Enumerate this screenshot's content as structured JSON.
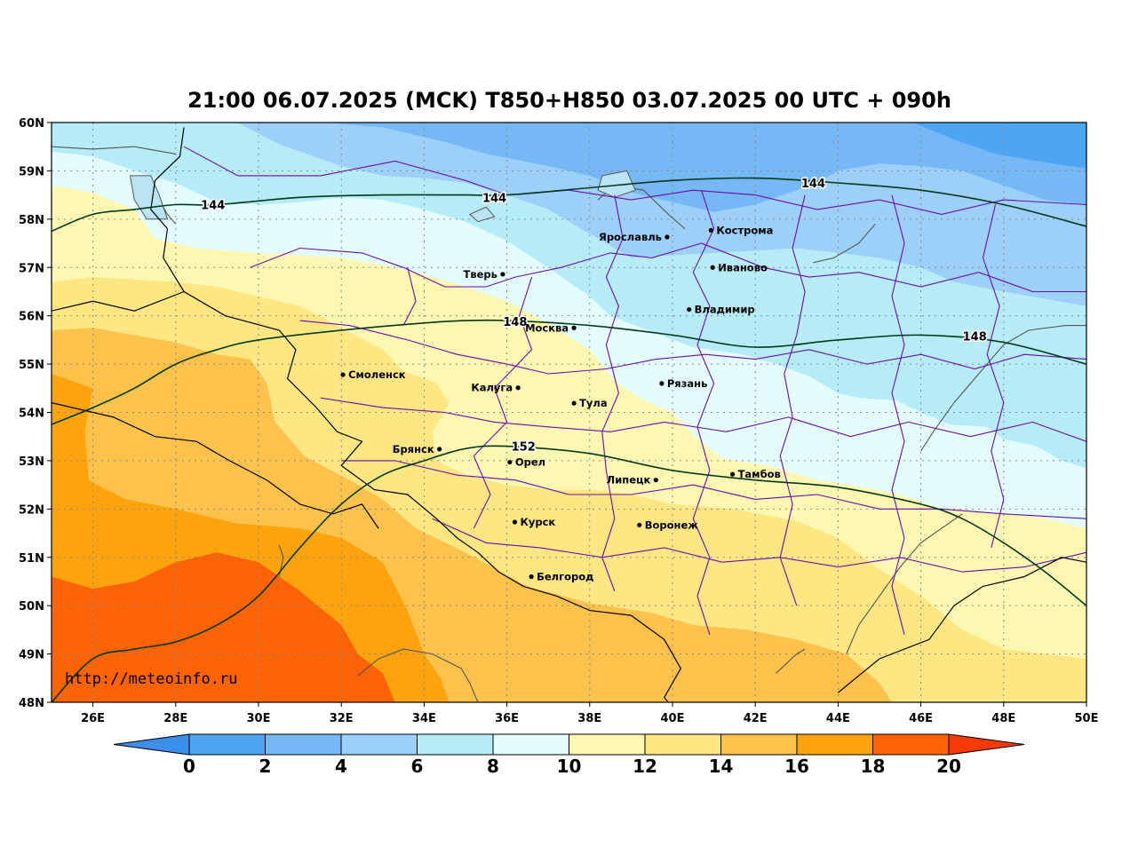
{
  "title": "21:00 06.07.2025 (MCK) T850+H850 03.07.2025 00 UTC + 090h",
  "source": "http://meteoinfo.ru",
  "map": {
    "lon_range": [
      25,
      50
    ],
    "lat_range": [
      48,
      60
    ],
    "x_ticks": [
      {
        "lon": 26,
        "label": "26E"
      },
      {
        "lon": 28,
        "label": "28E"
      },
      {
        "lon": 30,
        "label": "30E"
      },
      {
        "lon": 32,
        "label": "32E"
      },
      {
        "lon": 34,
        "label": "34E"
      },
      {
        "lon": 36,
        "label": "36E"
      },
      {
        "lon": 38,
        "label": "38E"
      },
      {
        "lon": 40,
        "label": "40E"
      },
      {
        "lon": 42,
        "label": "42E"
      },
      {
        "lon": 44,
        "label": "44E"
      },
      {
        "lon": 46,
        "label": "46E"
      },
      {
        "lon": 48,
        "label": "48E"
      },
      {
        "lon": 50,
        "label": "50E"
      }
    ],
    "y_ticks": [
      {
        "lat": 48,
        "label": "48N"
      },
      {
        "lat": 49,
        "label": "49N"
      },
      {
        "lat": 50,
        "label": "50N"
      },
      {
        "lat": 51,
        "label": "51N"
      },
      {
        "lat": 52,
        "label": "52N"
      },
      {
        "lat": 53,
        "label": "53N"
      },
      {
        "lat": 54,
        "label": "54N"
      },
      {
        "lat": 55,
        "label": "55N"
      },
      {
        "lat": 56,
        "label": "56N"
      },
      {
        "lat": 57,
        "label": "57N"
      },
      {
        "lat": 58,
        "label": "58N"
      },
      {
        "lat": 59,
        "label": "59N"
      },
      {
        "lat": 60,
        "label": "60N"
      }
    ],
    "grid": true
  },
  "colors": {
    "t0_2": "#4ea6f3",
    "t2_4": "#76b7f6",
    "t4_6": "#9dd0f8",
    "t6_8": "#b5ecf8",
    "t8_10": "#e3fcfd",
    "t10_12": "#fdf7b1",
    "t12_14": "#fee683",
    "t14_16": "#fcc24b",
    "t16_18": "#fca30d",
    "t18_20": "#fb6304",
    "above": "#f53a06",
    "below": "#3c8fe9",
    "border_region": "#6a0dad",
    "border_country": "#000000",
    "water": "#555555",
    "contour": "#003a1a",
    "grid": "#888888"
  },
  "colorbar": {
    "labels": [
      "0",
      "2",
      "4",
      "6",
      "8",
      "10",
      "12",
      "14",
      "16",
      "18",
      "20"
    ]
  },
  "contours": [
    {
      "value": 144,
      "labels": [
        "144",
        "144",
        "144"
      ],
      "points": [
        [
          25,
          57.75
        ],
        [
          26,
          58.1
        ],
        [
          27,
          58.2
        ],
        [
          28,
          58.3
        ],
        [
          29,
          58.3
        ],
        [
          31,
          58.45
        ],
        [
          33,
          58.5
        ],
        [
          35,
          58.5
        ],
        [
          36,
          58.5
        ],
        [
          38,
          58.65
        ],
        [
          40,
          58.8
        ],
        [
          42,
          58.85
        ],
        [
          44,
          58.75
        ],
        [
          46,
          58.6
        ],
        [
          48,
          58.3
        ],
        [
          50,
          57.85
        ]
      ],
      "label_pts": [
        [
          28.9,
          58.3
        ],
        [
          35.7,
          58.45
        ],
        [
          43.4,
          58.75
        ]
      ]
    },
    {
      "value": 148,
      "labels": [
        "148",
        "148"
      ],
      "points": [
        [
          25,
          53.75
        ],
        [
          26,
          54.1
        ],
        [
          27,
          54.5
        ],
        [
          28,
          55.0
        ],
        [
          29,
          55.3
        ],
        [
          30,
          55.5
        ],
        [
          32,
          55.7
        ],
        [
          34,
          55.85
        ],
        [
          35,
          55.9
        ],
        [
          36,
          55.9
        ],
        [
          38,
          55.8
        ],
        [
          40,
          55.6
        ],
        [
          42,
          55.35
        ],
        [
          44,
          55.5
        ],
        [
          46,
          55.6
        ],
        [
          48,
          55.45
        ],
        [
          50,
          55.0
        ]
      ],
      "label_pts": [
        [
          36.2,
          55.88
        ],
        [
          47.3,
          55.58
        ]
      ]
    },
    {
      "value": 152,
      "labels": [
        "152"
      ],
      "points": [
        [
          25,
          48.0
        ],
        [
          26,
          48.9
        ],
        [
          27,
          49.1
        ],
        [
          28,
          49.25
        ],
        [
          29,
          49.6
        ],
        [
          30,
          50.2
        ],
        [
          31,
          51.2
        ],
        [
          32,
          52.1
        ],
        [
          33,
          52.7
        ],
        [
          34,
          53.0
        ],
        [
          35,
          53.25
        ],
        [
          36,
          53.3
        ],
        [
          38,
          53.15
        ],
        [
          40,
          52.8
        ],
        [
          42,
          52.6
        ],
        [
          44,
          52.45
        ],
        [
          46,
          52.1
        ],
        [
          47,
          51.8
        ],
        [
          48,
          51.3
        ],
        [
          49,
          50.7
        ],
        [
          50,
          50.0
        ]
      ],
      "label_pts": [
        [
          36.4,
          53.3
        ]
      ]
    }
  ],
  "cities": [
    {
      "name": "Ярославль",
      "lon": 39.87,
      "lat": 57.63,
      "align": "left"
    },
    {
      "name": "Кострома",
      "lon": 40.93,
      "lat": 57.77,
      "align": "right"
    },
    {
      "name": "Иваново",
      "lon": 40.97,
      "lat": 57.0,
      "align": "right"
    },
    {
      "name": "Тверь",
      "lon": 35.9,
      "lat": 56.86,
      "align": "left"
    },
    {
      "name": "Владимир",
      "lon": 40.4,
      "lat": 56.13,
      "align": "right"
    },
    {
      "name": "Москва",
      "lon": 37.62,
      "lat": 55.75,
      "align": "left"
    },
    {
      "name": "Смоленск",
      "lon": 32.04,
      "lat": 54.78,
      "align": "right"
    },
    {
      "name": "Калуга",
      "lon": 36.27,
      "lat": 54.51,
      "align": "left"
    },
    {
      "name": "Рязань",
      "lon": 39.74,
      "lat": 54.6,
      "align": "right"
    },
    {
      "name": "Тула",
      "lon": 37.62,
      "lat": 54.19,
      "align": "right"
    },
    {
      "name": "Брянск",
      "lon": 34.37,
      "lat": 53.24,
      "align": "left"
    },
    {
      "name": "Орел",
      "lon": 36.07,
      "lat": 52.97,
      "align": "right"
    },
    {
      "name": "Липецк",
      "lon": 39.6,
      "lat": 52.6,
      "align": "left"
    },
    {
      "name": "Тамбов",
      "lon": 41.45,
      "lat": 52.72,
      "align": "right"
    },
    {
      "name": "Курск",
      "lon": 36.19,
      "lat": 51.73,
      "align": "right"
    },
    {
      "name": "Воронеж",
      "lon": 39.2,
      "lat": 51.67,
      "align": "right"
    },
    {
      "name": "Белгород",
      "lon": 36.59,
      "lat": 50.6,
      "align": "right"
    }
  ]
}
